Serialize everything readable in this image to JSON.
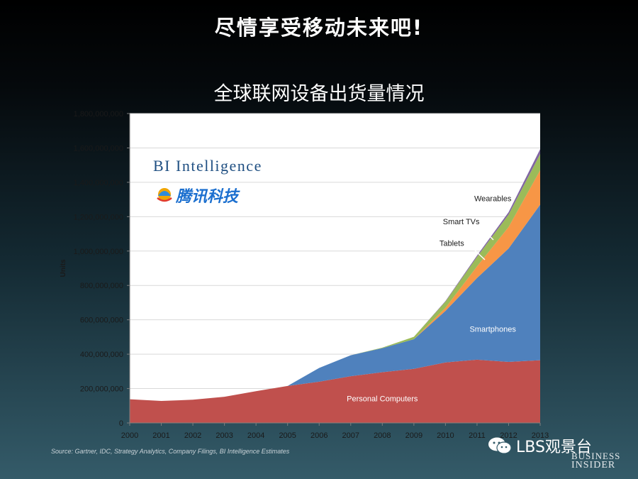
{
  "slide": {
    "title": "尽情享受移动未来吧!",
    "chart_title": "全球联网设备出货量情况",
    "source": "Source: Gartner, IDC, Strategy Analytics, Company Filings, BI Intelligence Estimates",
    "watermark_text": "LBS观景台",
    "logo_line1": "BUSINESS",
    "logo_line2": "INSIDER",
    "overlay_brand1": "BI Intelligence",
    "overlay_brand2": "腾讯科技"
  },
  "chart_data": {
    "type": "area",
    "stacked": true,
    "ylabel": "Units",
    "xlabel": "",
    "ylim": [
      0,
      1800000000
    ],
    "yticks": [
      0,
      200000000,
      400000000,
      600000000,
      800000000,
      1000000000,
      1200000000,
      1400000000,
      1600000000,
      1800000000
    ],
    "ytick_labels": [
      "0",
      "200,000,000",
      "400,000,000",
      "600,000,000",
      "800,000,000",
      "1,000,000,000",
      "1,200,000,000",
      "1,400,000,000",
      "1,600,000,000",
      "1,800,000,000"
    ],
    "x": [
      "2000",
      "2001",
      "2002",
      "2003",
      "2004",
      "2005",
      "2006",
      "2007",
      "2008",
      "2009",
      "2010",
      "2011",
      "2012",
      "2013"
    ],
    "grid": true,
    "series": [
      {
        "name": "Personal Computers",
        "color": "#c0504d",
        "values": [
          138000000,
          128000000,
          135000000,
          152000000,
          185000000,
          215000000,
          240000000,
          272000000,
          295000000,
          315000000,
          352000000,
          368000000,
          355000000,
          365000000
        ]
      },
      {
        "name": "Smartphones",
        "color": "#4f81bd",
        "values": [
          0,
          0,
          0,
          0,
          0,
          0,
          80000000,
          122000000,
          140000000,
          172000000,
          300000000,
          475000000,
          660000000,
          905000000
        ]
      },
      {
        "name": "Tablets",
        "color": "#f79646",
        "values": [
          0,
          0,
          0,
          0,
          0,
          0,
          0,
          0,
          0,
          0,
          18000000,
          68000000,
          125000000,
          200000000
        ]
      },
      {
        "name": "Smart TVs",
        "color": "#9bbb59",
        "values": [
          0,
          0,
          0,
          0,
          0,
          0,
          0,
          0,
          3000000,
          14000000,
          36000000,
          55000000,
          72000000,
          95000000
        ]
      },
      {
        "name": "Wearables",
        "color": "#8064a2",
        "values": [
          0,
          0,
          0,
          0,
          0,
          0,
          0,
          0,
          0,
          0,
          3000000,
          8000000,
          14000000,
          28000000
        ]
      }
    ],
    "annotations": [
      {
        "text": "Personal Computers",
        "series": "Personal Computers",
        "x": "2008",
        "y": 125000000
      },
      {
        "text": "Smartphones",
        "series": "Smartphones",
        "x": "2011.5",
        "y": 530000000
      },
      {
        "text": "Tablets",
        "series": "Tablets",
        "x": "2010.2",
        "y": 1030000000
      },
      {
        "text": "Smart TVs",
        "series": "Smart TVs",
        "x": "2010.5",
        "y": 1155000000
      },
      {
        "text": "Wearables",
        "series": "Wearables",
        "x": "2011.5",
        "y": 1290000000
      }
    ]
  }
}
